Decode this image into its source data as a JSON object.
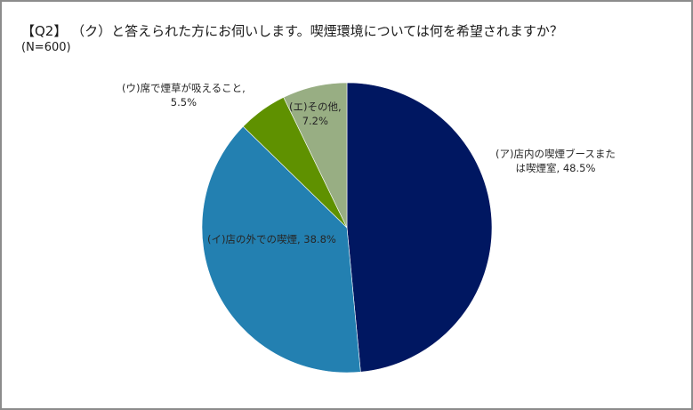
{
  "header": {
    "title": "【Q2】 （ク）と答えられた方にお伺いします。喫煙環境については何を希望されますか？",
    "sample": "(N=600)"
  },
  "labels": {
    "a_line1": "(ア)店内の喫煙ブースまた",
    "a_line2": "は喫煙室, 48.5%",
    "b": "(イ)店の外での喫煙, 38.8%",
    "c_line1": "(ウ)席で煙草が吸えること,",
    "c_line2": "5.5%",
    "d_line1": "(エ)その他,",
    "d_line2": "7.2%"
  },
  "chart_data": {
    "type": "pie",
    "title": "【Q2】 （ク）と答えられた方にお伺いします。喫煙環境については何を希望されますか？",
    "subtitle": "(N=600)",
    "categories": [
      "(ア)店内の喫煙ブースまたは喫煙室",
      "(イ)店の外での喫煙",
      "(ウ)席で煙草が吸えること",
      "(エ)その他"
    ],
    "values": [
      48.5,
      38.8,
      5.5,
      7.2
    ],
    "colors": [
      "#001761",
      "#2380b1",
      "#5f9100",
      "#98ae83"
    ],
    "start_angle": "12 o'clock, clockwise",
    "legend": "none (data labels)"
  }
}
